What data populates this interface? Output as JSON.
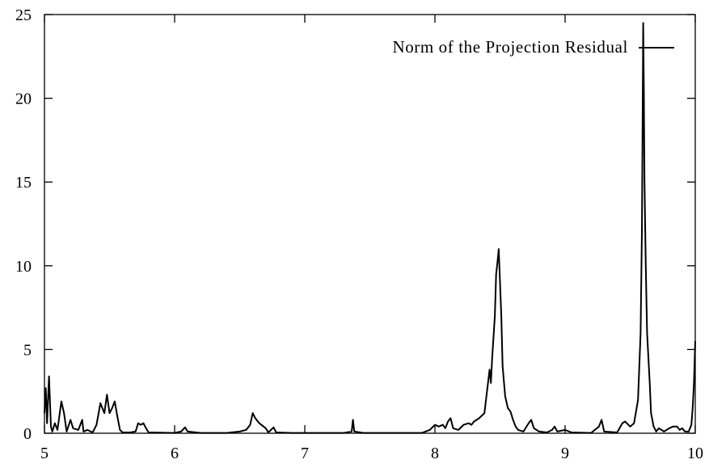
{
  "chart_data": {
    "type": "line",
    "title": "",
    "xlabel": "",
    "ylabel": "",
    "xlim": [
      5,
      10
    ],
    "ylim": [
      0,
      25
    ],
    "grid": false,
    "legend_position": "top-right",
    "x_ticks": [
      "5",
      "6",
      "7",
      "8",
      "9",
      "10"
    ],
    "y_ticks": [
      "0",
      "5",
      "10",
      "15",
      "20",
      "25"
    ],
    "series": [
      {
        "name": "Norm of the Projection Residual",
        "color": "#000000",
        "points": [
          [
            5.0,
            1.2
          ],
          [
            5.01,
            2.7
          ],
          [
            5.02,
            0.6
          ],
          [
            5.035,
            3.4
          ],
          [
            5.05,
            0.4
          ],
          [
            5.06,
            0.1
          ],
          [
            5.08,
            0.6
          ],
          [
            5.1,
            0.2
          ],
          [
            5.13,
            1.9
          ],
          [
            5.15,
            1.2
          ],
          [
            5.17,
            0.1
          ],
          [
            5.2,
            0.8
          ],
          [
            5.22,
            0.3
          ],
          [
            5.26,
            0.2
          ],
          [
            5.29,
            0.8
          ],
          [
            5.3,
            0.1
          ],
          [
            5.33,
            0.2
          ],
          [
            5.37,
            0.05
          ],
          [
            5.4,
            0.5
          ],
          [
            5.43,
            1.8
          ],
          [
            5.46,
            1.2
          ],
          [
            5.48,
            2.3
          ],
          [
            5.5,
            1.2
          ],
          [
            5.52,
            1.5
          ],
          [
            5.54,
            1.9
          ],
          [
            5.56,
            1.0
          ],
          [
            5.58,
            0.2
          ],
          [
            5.6,
            0.05
          ],
          [
            5.66,
            0.05
          ],
          [
            5.7,
            0.1
          ],
          [
            5.72,
            0.6
          ],
          [
            5.74,
            0.5
          ],
          [
            5.76,
            0.6
          ],
          [
            5.78,
            0.3
          ],
          [
            5.8,
            0.05
          ],
          [
            6.0,
            0.02
          ],
          [
            6.05,
            0.1
          ],
          [
            6.08,
            0.35
          ],
          [
            6.1,
            0.1
          ],
          [
            6.2,
            0.02
          ],
          [
            6.4,
            0.02
          ],
          [
            6.5,
            0.1
          ],
          [
            6.55,
            0.2
          ],
          [
            6.58,
            0.5
          ],
          [
            6.6,
            1.2
          ],
          [
            6.62,
            0.9
          ],
          [
            6.65,
            0.6
          ],
          [
            6.7,
            0.3
          ],
          [
            6.72,
            0.05
          ],
          [
            6.76,
            0.35
          ],
          [
            6.78,
            0.05
          ],
          [
            6.9,
            0.02
          ],
          [
            7.3,
            0.02
          ],
          [
            7.36,
            0.1
          ],
          [
            7.37,
            0.8
          ],
          [
            7.38,
            0.1
          ],
          [
            7.45,
            0.02
          ],
          [
            7.9,
            0.02
          ],
          [
            7.96,
            0.2
          ],
          [
            8.0,
            0.5
          ],
          [
            8.03,
            0.4
          ],
          [
            8.06,
            0.5
          ],
          [
            8.08,
            0.3
          ],
          [
            8.1,
            0.7
          ],
          [
            8.12,
            0.9
          ],
          [
            8.14,
            0.3
          ],
          [
            8.18,
            0.2
          ],
          [
            8.22,
            0.5
          ],
          [
            8.26,
            0.6
          ],
          [
            8.28,
            0.5
          ],
          [
            8.3,
            0.7
          ],
          [
            8.34,
            0.9
          ],
          [
            8.38,
            1.2
          ],
          [
            8.4,
            2.5
          ],
          [
            8.42,
            3.8
          ],
          [
            8.43,
            3.0
          ],
          [
            8.44,
            4.5
          ],
          [
            8.46,
            7.0
          ],
          [
            8.47,
            9.5
          ],
          [
            8.48,
            10.2
          ],
          [
            8.49,
            11.0
          ],
          [
            8.5,
            9.0
          ],
          [
            8.51,
            7.0
          ],
          [
            8.52,
            4.0
          ],
          [
            8.54,
            2.2
          ],
          [
            8.56,
            1.5
          ],
          [
            8.58,
            1.3
          ],
          [
            8.6,
            0.8
          ],
          [
            8.62,
            0.4
          ],
          [
            8.64,
            0.2
          ],
          [
            8.68,
            0.1
          ],
          [
            8.72,
            0.6
          ],
          [
            8.74,
            0.8
          ],
          [
            8.76,
            0.3
          ],
          [
            8.8,
            0.1
          ],
          [
            8.86,
            0.05
          ],
          [
            8.9,
            0.2
          ],
          [
            8.92,
            0.4
          ],
          [
            8.94,
            0.1
          ],
          [
            9.0,
            0.2
          ],
          [
            9.05,
            0.05
          ],
          [
            9.2,
            0.02
          ],
          [
            9.26,
            0.4
          ],
          [
            9.28,
            0.8
          ],
          [
            9.3,
            0.1
          ],
          [
            9.4,
            0.05
          ],
          [
            9.44,
            0.6
          ],
          [
            9.46,
            0.7
          ],
          [
            9.5,
            0.4
          ],
          [
            9.53,
            0.6
          ],
          [
            9.56,
            2.0
          ],
          [
            9.58,
            6.0
          ],
          [
            9.59,
            12.0
          ],
          [
            9.595,
            18.0
          ],
          [
            9.6,
            24.5
          ],
          [
            9.605,
            20.5
          ],
          [
            9.61,
            15.0
          ],
          [
            9.62,
            10.0
          ],
          [
            9.63,
            6.0
          ],
          [
            9.65,
            3.0
          ],
          [
            9.66,
            1.2
          ],
          [
            9.68,
            0.4
          ],
          [
            9.7,
            0.1
          ],
          [
            9.72,
            0.3
          ],
          [
            9.76,
            0.1
          ],
          [
            9.8,
            0.3
          ],
          [
            9.83,
            0.4
          ],
          [
            9.86,
            0.4
          ],
          [
            9.88,
            0.2
          ],
          [
            9.9,
            0.3
          ],
          [
            9.92,
            0.1
          ],
          [
            9.95,
            0.1
          ],
          [
            9.97,
            0.5
          ],
          [
            9.98,
            1.5
          ],
          [
            9.99,
            3.0
          ],
          [
            10.0,
            5.5
          ]
        ]
      }
    ]
  }
}
